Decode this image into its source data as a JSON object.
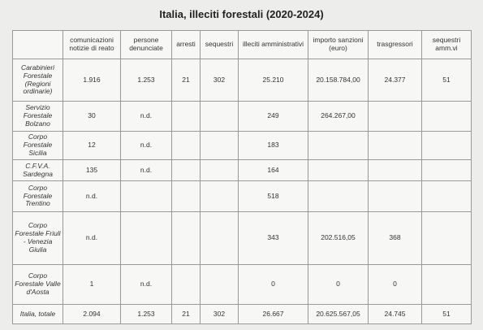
{
  "title": "Italia, illeciti forestali (2020-2024)",
  "table": {
    "columns": [
      "comunicazioni notizie di reato",
      "persone denunciate",
      "arresti",
      "sequestri",
      "illeciti amministrativi",
      "importo sanzioni (euro)",
      "trasgressori",
      "sequestri amm.vi"
    ],
    "rows": [
      {
        "label": "Carabinieri Forestale (Regioni ordinarie)",
        "cells": [
          "1.916",
          "1.253",
          "21",
          "302",
          "25.210",
          "20.158.784,00",
          "24.377",
          "51"
        ]
      },
      {
        "label": "Servizio Forestale Bolzano",
        "cells": [
          "30",
          "n.d.",
          null,
          null,
          "249",
          "264.267,00",
          null,
          null
        ]
      },
      {
        "label": "Corpo Forestale Sicilia",
        "cells": [
          "12",
          "n.d.",
          null,
          null,
          "183",
          null,
          null,
          null
        ]
      },
      {
        "label": "C.F.V.A. Sardegna",
        "cells": [
          "135",
          "n.d.",
          null,
          null,
          "164",
          null,
          null,
          null
        ]
      },
      {
        "label": "Corpo Forestale Trentino",
        "cells": [
          "n.d.",
          null,
          null,
          null,
          "518",
          null,
          null,
          null
        ]
      },
      {
        "label": "Corpo Forestale Friuli - Venezia Giulia",
        "cells": [
          "n.d.",
          null,
          null,
          null,
          "343",
          "202.516,05",
          "368",
          null
        ]
      },
      {
        "label": "Corpo Forestale Valle d'Aosta",
        "cells": [
          "1",
          "n.d.",
          null,
          null,
          "0",
          "0",
          "0",
          null
        ]
      },
      {
        "label": "Italia, totale",
        "cells": [
          "2.094",
          "1.253",
          "21",
          "302",
          "26.667",
          "20.625.567,05",
          "24.745",
          "51"
        ]
      }
    ]
  }
}
